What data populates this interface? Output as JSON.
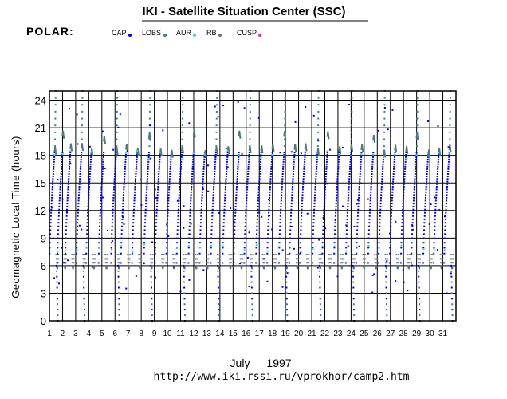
{
  "header": {
    "title": "IKI - Satellite Situation Center (SSC)",
    "satellite": "POLAR:"
  },
  "legend": [
    {
      "label": "CAP",
      "color": "#0000ee"
    },
    {
      "label": "LOBS",
      "color": "#3a7f8e"
    },
    {
      "label": "AUR",
      "color": "#22dddd"
    },
    {
      "label": "RB",
      "color": "#707070"
    },
    {
      "label": "CUSP",
      "color": "#ee22ee"
    }
  ],
  "footer": {
    "month": "July",
    "year": "1997",
    "url": "http://www.iki.rssi.ru/vprokhor/camp2.htm"
  },
  "chart_data": {
    "type": "scatter",
    "ylabel": "Geomagnetic Local Time (hours)",
    "xlabel": "",
    "ylim": [
      0,
      25
    ],
    "yticks": [
      0,
      3,
      6,
      9,
      12,
      15,
      18,
      21,
      24
    ],
    "xlim": [
      1,
      32
    ],
    "xticks": [
      "1",
      "2",
      "3",
      "4",
      "5",
      "6",
      "7",
      "8",
      "9",
      "10",
      "11",
      "12",
      "13",
      "14",
      "15",
      "16",
      "17",
      "18",
      "19",
      "20",
      "21",
      "22",
      "23",
      "24",
      "25",
      "26",
      "27",
      "28",
      "29",
      "30",
      "31"
    ],
    "grid": true,
    "orbit_starts": [
      1.0,
      1.6,
      2.2,
      3.05,
      3.8,
      4.75,
      5.7,
      6.45,
      7.3,
      8.2,
      9.05,
      9.9,
      10.7,
      11.6,
      12.45,
      13.3,
      14.2,
      15.05,
      15.85,
      16.75,
      17.6,
      18.5,
      19.3,
      20.1,
      21.05,
      21.8,
      22.7,
      23.6,
      24.4,
      25.3,
      26.1,
      26.95,
      27.8,
      28.6,
      29.5,
      30.3,
      31.1
    ],
    "orbit_period_days": 0.72,
    "description_series": [
      {
        "name": "CAP",
        "glt_range": [
          6,
          24
        ]
      },
      {
        "name": "LOBS",
        "glt_range": [
          0,
          24
        ]
      },
      {
        "name": "AUR",
        "glt_range": [
          5,
          20
        ]
      },
      {
        "name": "RB",
        "glt_range": [
          4,
          21
        ]
      },
      {
        "name": "CUSP",
        "glt_range": [
          12,
          14
        ]
      }
    ]
  }
}
